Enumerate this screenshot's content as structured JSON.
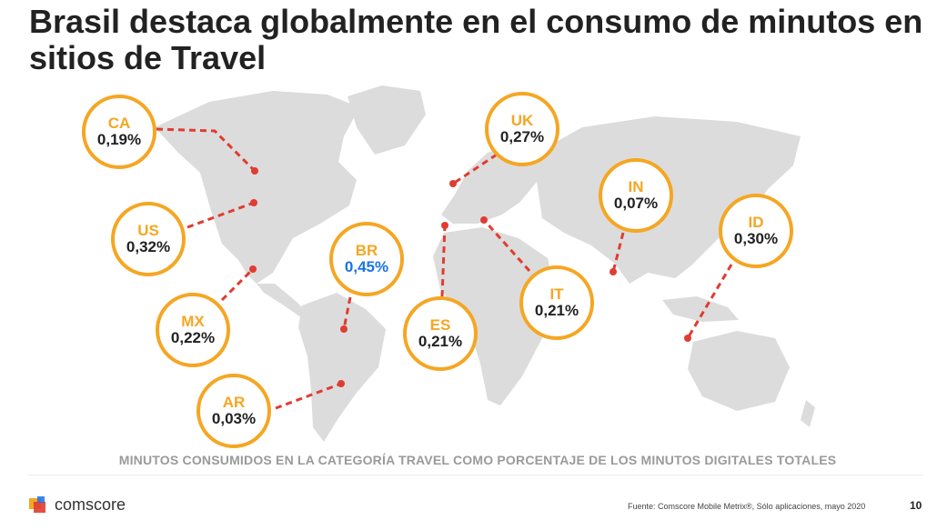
{
  "title": "Brasil destaca globalmente en el consumo de minutos en sitios de Travel",
  "colors": {
    "accent": "#f5a623",
    "connector": "#e03c31",
    "highlight": "#1a73e8",
    "land": "#dcdcdc"
  },
  "markers": [
    {
      "id": "ca",
      "code": "CA",
      "value": "0,19%",
      "highlight": false
    },
    {
      "id": "us",
      "code": "US",
      "value": "0,32%",
      "highlight": false
    },
    {
      "id": "mx",
      "code": "MX",
      "value": "0,22%",
      "highlight": false
    },
    {
      "id": "ar",
      "code": "AR",
      "value": "0,03%",
      "highlight": false
    },
    {
      "id": "br",
      "code": "BR",
      "value": "0,45%",
      "highlight": true
    },
    {
      "id": "es",
      "code": "ES",
      "value": "0,21%",
      "highlight": false
    },
    {
      "id": "uk",
      "code": "UK",
      "value": "0,27%",
      "highlight": false
    },
    {
      "id": "it",
      "code": "IT",
      "value": "0,21%",
      "highlight": false
    },
    {
      "id": "in",
      "code": "IN",
      "value": "0,07%",
      "highlight": false
    },
    {
      "id": "id",
      "code": "ID",
      "value": "0,30%",
      "highlight": false
    }
  ],
  "caption": "MINUTOS CONSUMIDOS EN LA CATEGORÍA TRAVEL COMO PORCENTAJE DE LOS MINUTOS DIGITALES TOTALES",
  "footer": {
    "logo_text": "comscore",
    "source": "Fuente: Comscore Mobile Metrix®, Sólo aplicaciones, mayo 2020",
    "page": "10"
  }
}
